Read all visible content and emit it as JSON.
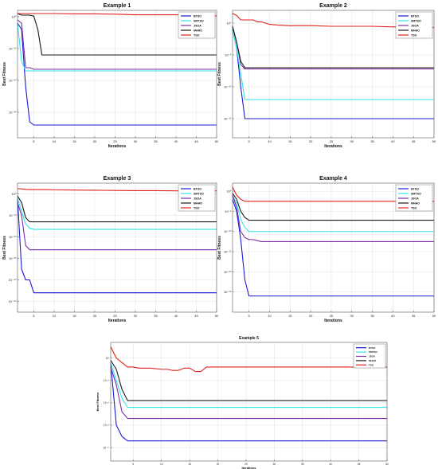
{
  "chart_data": [
    {
      "type": "line",
      "title": "Example 1",
      "xlabel": "Iterations",
      "ylabel": "Best Fitness",
      "xlim": [
        1,
        50
      ],
      "xticks": [
        5,
        10,
        15,
        20,
        25,
        30,
        35,
        40,
        45,
        50
      ],
      "yscale": "log",
      "ylim_exp": [
        -38,
        2
      ],
      "yticks_exp": [
        0,
        -10,
        -20,
        -30
      ],
      "ytick_labels": [
        "10⁰",
        "10⁻¹⁰",
        "10⁻²⁰",
        "10⁻³⁰"
      ],
      "legend_position": "top-right",
      "grid": true,
      "x": [
        1,
        2,
        3,
        4,
        5,
        6,
        7,
        8,
        9,
        10,
        15,
        20,
        25,
        30,
        35,
        40,
        45,
        50
      ],
      "series": [
        {
          "name": "BTSO",
          "color": "#1a1ad6",
          "y_exp": [
            -2,
            -4,
            -22,
            -33,
            -34,
            -34,
            -34,
            -34,
            -34,
            -34,
            -34,
            -34,
            -34,
            -34,
            -34,
            -34,
            -34,
            -34
          ]
        },
        {
          "name": "SMTSO",
          "color": "#2ee6e6",
          "y_exp": [
            -2,
            -14,
            -17,
            -17,
            -17,
            -17,
            -17,
            -17,
            -17,
            -17,
            -17,
            -17,
            -17,
            -17,
            -17,
            -17,
            -17,
            -17
          ]
        },
        {
          "name": "JSOA",
          "color": "#7b2ea6",
          "y_exp": [
            -1,
            -2,
            -16,
            -16,
            -16.5,
            -16.5,
            -16.5,
            -16.5,
            -16.5,
            -16.5,
            -16.5,
            -16.5,
            -16.5,
            -16.5,
            -16.5,
            -16.5,
            -16.5,
            -16.5
          ]
        },
        {
          "name": "MHHO",
          "color": "#1a1a1a",
          "y_exp": [
            1,
            0.5,
            0.5,
            0.5,
            0.2,
            -4,
            -12,
            -12,
            -12,
            -12,
            -12,
            -12,
            -12,
            -12,
            -12,
            -12,
            -12,
            -12
          ]
        },
        {
          "name": "TSO",
          "color": "#e0201c",
          "y_exp": [
            1,
            1,
            1,
            1,
            1,
            1,
            1,
            1,
            1,
            1,
            0.9,
            0.9,
            0.8,
            0.6,
            0.6,
            0.6,
            0.3,
            0.3
          ]
        }
      ]
    },
    {
      "type": "line",
      "title": "Example 2",
      "xlabel": "Iterations",
      "ylabel": "Best Fitness",
      "xlim": [
        1,
        50
      ],
      "xticks": [
        5,
        10,
        15,
        20,
        25,
        30,
        35,
        40,
        45,
        50
      ],
      "yscale": "log",
      "ylim_exp": [
        -18,
        2
      ],
      "yticks_exp": [
        0,
        -5,
        -10,
        -15
      ],
      "ytick_labels": [
        "10⁰",
        "10⁻⁵",
        "10⁻¹⁰",
        "10⁻¹⁵"
      ],
      "legend_position": "top-right",
      "grid": true,
      "x": [
        1,
        2,
        3,
        4,
        5,
        6,
        7,
        8,
        10,
        12,
        15,
        20,
        25,
        30,
        35,
        40,
        45,
        50
      ],
      "series": [
        {
          "name": "BTSO",
          "color": "#1a1ad6",
          "y_exp": [
            -1,
            -4,
            -10,
            -15,
            -15,
            -15,
            -15,
            -15,
            -15,
            -15,
            -15,
            -15,
            -15,
            -15,
            -15,
            -15,
            -15,
            -15
          ]
        },
        {
          "name": "SMTSO",
          "color": "#2ee6e6",
          "y_exp": [
            -1,
            -4,
            -8,
            -12,
            -12,
            -12,
            -12,
            -12,
            -12,
            -12,
            -12,
            -12,
            -12,
            -12,
            -12,
            -12,
            -12,
            -12
          ]
        },
        {
          "name": "JSOA",
          "color": "#7b2ea6",
          "y_exp": [
            -0.5,
            -3,
            -6.5,
            -7.2,
            -7.2,
            -7.2,
            -7.2,
            -7.2,
            -7.2,
            -7.2,
            -7.2,
            -7.2,
            -7.2,
            -7.2,
            -7.2,
            -7.2,
            -7.2,
            -7.2
          ]
        },
        {
          "name": "MHHO",
          "color": "#1a1a1a",
          "y_exp": [
            -0.5,
            -3,
            -6,
            -7,
            -7,
            -7,
            -7,
            -7,
            -7,
            -7,
            -7,
            -7,
            -7,
            -7,
            -7,
            -7,
            -7,
            -7
          ]
        },
        {
          "name": "TSO",
          "color": "#e0201c",
          "y_exp": [
            1.5,
            1.2,
            0.5,
            0.5,
            0.5,
            0.5,
            0.2,
            0.2,
            -0.2,
            -0.3,
            -0.4,
            -0.4,
            -0.5,
            -0.5,
            -0.5,
            -0.6,
            -0.6,
            -0.7
          ]
        }
      ]
    },
    {
      "type": "line",
      "title": "Example 3",
      "xlabel": "Iterations",
      "ylabel": "Best Fitness",
      "xlim": [
        1,
        50
      ],
      "xticks": [
        5,
        10,
        15,
        20,
        25,
        30,
        35,
        40,
        45,
        50
      ],
      "yscale": "log",
      "ylim_exp": [
        -55,
        5
      ],
      "yticks_exp": [
        0,
        -10,
        -20,
        -30,
        -40,
        -50
      ],
      "ytick_labels": [
        "10⁰",
        "10⁻¹⁰",
        "10⁻²⁰",
        "10⁻³⁰",
        "10⁻⁴⁰",
        "10⁻⁵⁰"
      ],
      "legend_position": "top-right",
      "grid": true,
      "x": [
        1,
        2,
        3,
        4,
        5,
        6,
        7,
        8,
        10,
        15,
        20,
        25,
        30,
        35,
        40,
        45,
        50
      ],
      "series": [
        {
          "name": "BTSO",
          "color": "#1a1ad6",
          "y_exp": [
            -2,
            -35,
            -40,
            -40,
            -46,
            -46,
            -46,
            -46,
            -46,
            -46,
            -46,
            -46,
            -46,
            -46,
            -46,
            -46,
            -46
          ]
        },
        {
          "name": "SMTSO",
          "color": "#2ee6e6",
          "y_exp": [
            -2,
            -8,
            -14,
            -16,
            -16.5,
            -16.5,
            -16.5,
            -16.5,
            -16.5,
            -16.5,
            -16.5,
            -16.5,
            -16.5,
            -16.5,
            -16.5,
            -16.5,
            -16.5
          ]
        },
        {
          "name": "JSOA",
          "color": "#7b2ea6",
          "y_exp": [
            -4,
            -10,
            -24,
            -26,
            -26,
            -26,
            -26,
            -26,
            -26,
            -26,
            -26,
            -26,
            -26,
            -26,
            -26,
            -26,
            -26
          ]
        },
        {
          "name": "MHHO",
          "color": "#1a1a1a",
          "y_exp": [
            -1,
            -4,
            -11,
            -13,
            -13,
            -13,
            -13,
            -13,
            -13,
            -13,
            -13,
            -13,
            -13,
            -13,
            -13,
            -13,
            -13
          ]
        },
        {
          "name": "TSO",
          "color": "#e0201c",
          "y_exp": [
            2.5,
            2.3,
            2.1,
            2,
            2,
            2,
            2,
            2,
            1.9,
            1.8,
            1.7,
            1.6,
            1.5,
            1.5,
            1.4,
            1.4,
            1.4
          ]
        }
      ]
    },
    {
      "type": "line",
      "title": "Example 4",
      "xlabel": "Iterations",
      "ylabel": "Best Fitness",
      "xlim": [
        1,
        50
      ],
      "xticks": [
        5,
        10,
        15,
        20,
        25,
        30,
        35,
        40,
        45,
        50
      ],
      "yscale": "log",
      "ylim_exp": [
        -30,
        2
      ],
      "yticks_exp": [
        0,
        -5,
        -10,
        -15,
        -20,
        -25
      ],
      "ytick_labels": [
        "10⁰",
        "10⁻⁵",
        "10⁻¹⁰",
        "10⁻¹⁵",
        "10⁻²⁰",
        "10⁻²⁵"
      ],
      "legend_position": "top-right",
      "grid": true,
      "x": [
        1,
        2,
        3,
        4,
        5,
        6,
        8,
        10,
        15,
        20,
        25,
        30,
        35,
        40,
        45,
        50
      ],
      "series": [
        {
          "name": "BTSO",
          "color": "#1a1ad6",
          "y_exp": [
            -2,
            -5,
            -12,
            -22,
            -26,
            -26,
            -26,
            -26,
            -26,
            -26,
            -26,
            -26,
            -26,
            -26,
            -26,
            -26
          ]
        },
        {
          "name": "SMTSO",
          "color": "#2ee6e6",
          "y_exp": [
            -1,
            -3,
            -7,
            -9,
            -10,
            -10,
            -10,
            -10,
            -10,
            -10,
            -10,
            -10,
            -10,
            -10,
            -10,
            -10
          ]
        },
        {
          "name": "JSOA",
          "color": "#7b2ea6",
          "y_exp": [
            -1,
            -4,
            -10,
            -11.5,
            -12,
            -12,
            -12.5,
            -12.5,
            -12.5,
            -12.5,
            -12.5,
            -12.5,
            -12.5,
            -12.5,
            -12.5,
            -12.5
          ]
        },
        {
          "name": "MHHO",
          "color": "#1a1a1a",
          "y_exp": [
            -0.5,
            -2,
            -5,
            -6.5,
            -7.2,
            -7.2,
            -7.2,
            -7.2,
            -7.2,
            -7.2,
            -7.2,
            -7.2,
            -7.2,
            -7.2,
            -7.2,
            -7.2
          ]
        },
        {
          "name": "TSO",
          "color": "#e0201c",
          "y_exp": [
            1,
            -1,
            -2,
            -2.5,
            -2.5,
            -2.5,
            -2.5,
            -2.5,
            -2.5,
            -2.5,
            -2.5,
            -2.5,
            -2.5,
            -2.5,
            -2.5,
            -2.5
          ]
        }
      ]
    },
    {
      "type": "line",
      "title": "Example 5",
      "xlabel": "Iterations",
      "ylabel": "Best Fitness",
      "xlim": [
        1,
        50
      ],
      "xticks": [
        5,
        10,
        15,
        20,
        25,
        30,
        35,
        40,
        45,
        50
      ],
      "yscale": "log",
      "ylim_exp": [
        -46,
        7
      ],
      "yticks_exp": [
        0,
        -10,
        -20,
        -30,
        -40
      ],
      "ytick_labels": [
        "10⁰",
        "10⁻¹⁰",
        "10⁻²⁰",
        "10⁻³⁰",
        "10⁻⁴⁰"
      ],
      "legend_position": "top-right",
      "grid": true,
      "x": [
        1,
        2,
        3,
        4,
        5,
        6,
        8,
        10,
        11,
        12,
        13,
        14,
        15,
        16,
        17,
        18,
        19,
        20,
        25,
        30,
        35,
        40,
        45,
        50
      ],
      "series": [
        {
          "name": "BTSO",
          "color": "#1a1ad6",
          "y_exp": [
            -2,
            -30,
            -35,
            -37,
            -37,
            -37,
            -37,
            -37,
            -37,
            -37,
            -37,
            -37,
            -37,
            -37,
            -37,
            -37,
            -37,
            -37,
            -37,
            -37,
            -37,
            -37,
            -37,
            -37
          ]
        },
        {
          "name": "SMTSO",
          "color": "#2ee6e6",
          "y_exp": [
            -2,
            -10,
            -18,
            -22,
            -22,
            -22,
            -22,
            -22,
            -22,
            -22,
            -22,
            -22,
            -22,
            -22,
            -22,
            -22,
            -22,
            -22,
            -22,
            -22,
            -22,
            -22,
            -22,
            -22
          ]
        },
        {
          "name": "JSOA",
          "color": "#7b2ea6",
          "y_exp": [
            -4,
            -12,
            -24,
            -27,
            -27,
            -27,
            -27,
            -27,
            -27,
            -27,
            -27,
            -27,
            -27,
            -27,
            -27,
            -27,
            -27,
            -27,
            -27,
            -27,
            -27,
            -27,
            -27,
            -27
          ]
        },
        {
          "name": "MHHO",
          "color": "#1a1a1a",
          "y_exp": [
            -1,
            -5,
            -14,
            -19,
            -19,
            -19,
            -19,
            -19,
            -19,
            -19,
            -19,
            -19,
            -19,
            -19,
            -19,
            -19,
            -19,
            -19,
            -19,
            -19,
            -19,
            -19,
            -19,
            -19
          ]
        },
        {
          "name": "TSO",
          "color": "#e0201c",
          "y_exp": [
            5,
            0,
            -2,
            -4,
            -4,
            -4.5,
            -4.5,
            -5,
            -5,
            -5.5,
            -5.5,
            -4.5,
            -4.5,
            -6,
            -6,
            -4,
            -4,
            -4,
            -4,
            -4,
            -4,
            -4,
            -4,
            -4
          ]
        }
      ]
    }
  ]
}
